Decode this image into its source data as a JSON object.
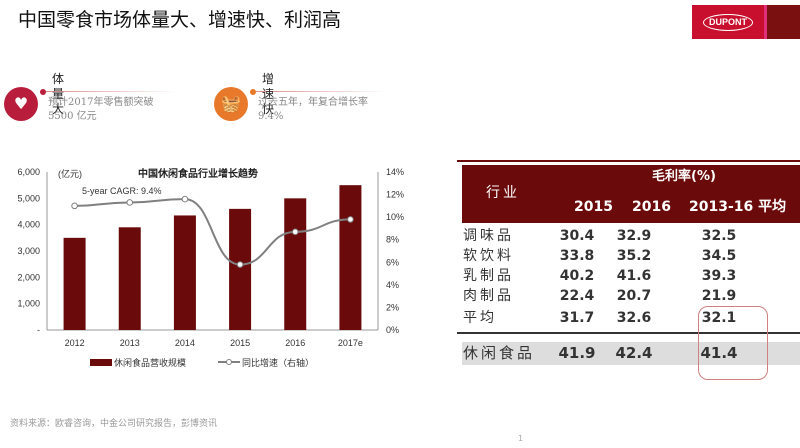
{
  "title": "中国零食市场体量大、增速快、利润高",
  "logo": "DUPONT",
  "features": [
    {
      "heading": "体量大",
      "line1": "预计2017年零售额突破",
      "line2": "5500 亿元",
      "icon": "heart-pulse-icon",
      "color": "#b81e3c"
    },
    {
      "heading": "增速快",
      "line1": "过去五年，年复合增长率",
      "line2": "9.4%",
      "icon": "basket-icon",
      "color": "#e8782a"
    }
  ],
  "chart_data": {
    "type": "bar+line",
    "title": "中国休闲食品行业增长趋势",
    "unit_label": "(亿元)",
    "annotation": "5-year CAGR: 9.4%",
    "categories": [
      "2012",
      "2013",
      "2014",
      "2015",
      "2016",
      "2017e"
    ],
    "series": [
      {
        "name": "休闲食品营收规模",
        "type": "bar",
        "axis": "left",
        "values": [
          3500,
          3900,
          4350,
          4600,
          5000,
          5500
        ],
        "color": "#6b0a0a"
      },
      {
        "name": "同比增速（右轴）",
        "type": "line",
        "axis": "right",
        "values": [
          11.0,
          11.3,
          11.6,
          5.8,
          8.7,
          9.8
        ],
        "color": "#808080"
      }
    ],
    "ylim": [
      0,
      6000
    ],
    "yticks": [
      "-",
      "1,000",
      "2,000",
      "3,000",
      "4,000",
      "5,000",
      "6,000"
    ],
    "y2lim": [
      0,
      14
    ],
    "y2ticks": [
      "0%",
      "2%",
      "4%",
      "6%",
      "8%",
      "10%",
      "12%",
      "14%"
    ],
    "legend": "bottom"
  },
  "table": {
    "col_header": "行业",
    "group_header": "毛利率(%)",
    "years": [
      "2015",
      "2016",
      "2013-16 平均"
    ],
    "rows": [
      [
        "调味品",
        "30.4",
        "32.9",
        "32.5"
      ],
      [
        "软饮料",
        "33.8",
        "35.2",
        "34.5"
      ],
      [
        "乳制品",
        "40.2",
        "41.6",
        "39.3"
      ],
      [
        "肉制品",
        "22.4",
        "20.7",
        "21.9"
      ]
    ],
    "avg": [
      "平均",
      "31.7",
      "32.6",
      "32.1"
    ],
    "snack": [
      "休闲食品",
      "41.9",
      "42.4",
      "41.4"
    ],
    "header_color": "#6b0a0a"
  },
  "source": "资料来源：欧睿咨询，中金公司研究报告，彭博资讯",
  "page": "1"
}
